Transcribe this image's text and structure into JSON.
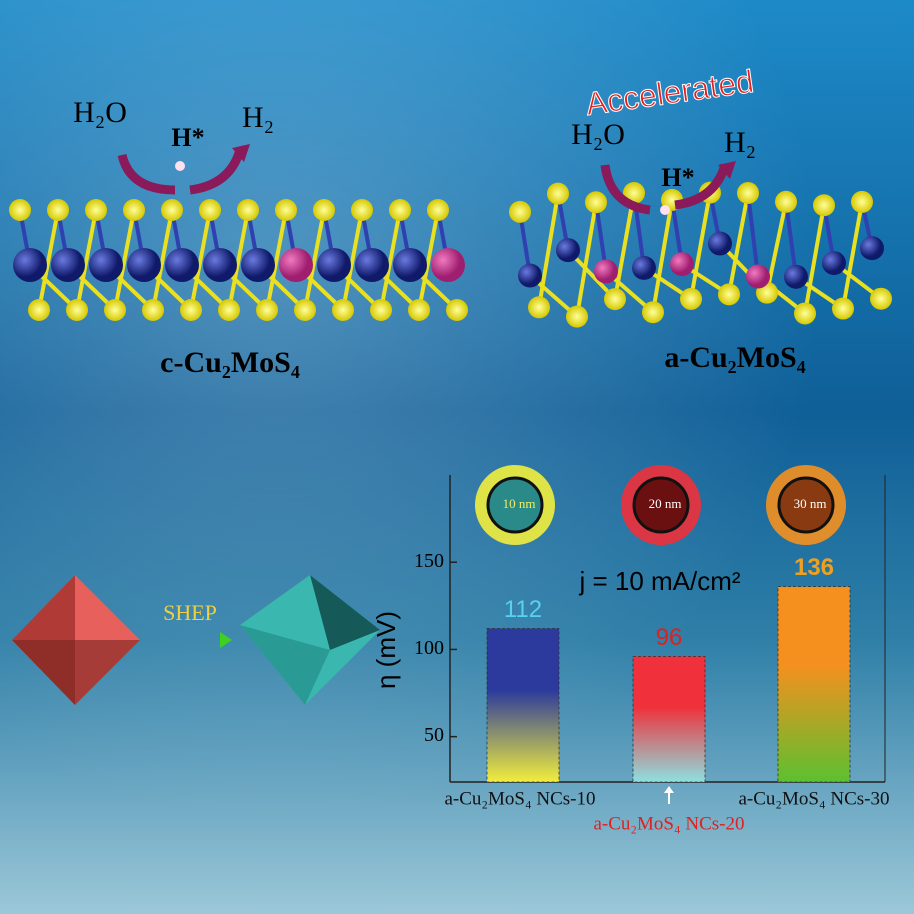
{
  "chart_data": {
    "type": "bar",
    "categories": [
      "a-Cu₂MoS₄ NCs-10",
      "a-Cu₂MoS₄ NCs-20",
      "a-Cu₂MoS₄ NCs-30"
    ],
    "values": [
      112,
      96,
      136
    ],
    "colors": [
      [
        "#2b3a9c",
        "#f2ee3c"
      ],
      [
        "#f0303a",
        "#8de0e0"
      ],
      [
        "#f5901e",
        "#5cc030"
      ]
    ],
    "value_label_colors": [
      "#5ad0f0",
      "#e02020",
      "#f0a020"
    ],
    "category_label_colors": [
      "#111111",
      "#e02020",
      "#111111"
    ],
    "image_labels": [
      "10 nm",
      "20 nm",
      "30 nm"
    ],
    "ylabel": "η (mV)",
    "annotation": "j = 10 mA/cm²",
    "ylim": [
      24,
      200
    ],
    "yticks": [
      50,
      100,
      150
    ]
  },
  "labels": {
    "left_reactant": "H₂O",
    "left_intermediate": "H*",
    "left_product": "H₂",
    "left_structure": "c-Cu₂MoS₄",
    "accelerated": "Accelerated",
    "right_reactant": "H₂O",
    "right_intermediate": "H*",
    "right_product": "H₂",
    "right_structure": "a-Cu₂MoS₄",
    "process": "SHEP"
  }
}
